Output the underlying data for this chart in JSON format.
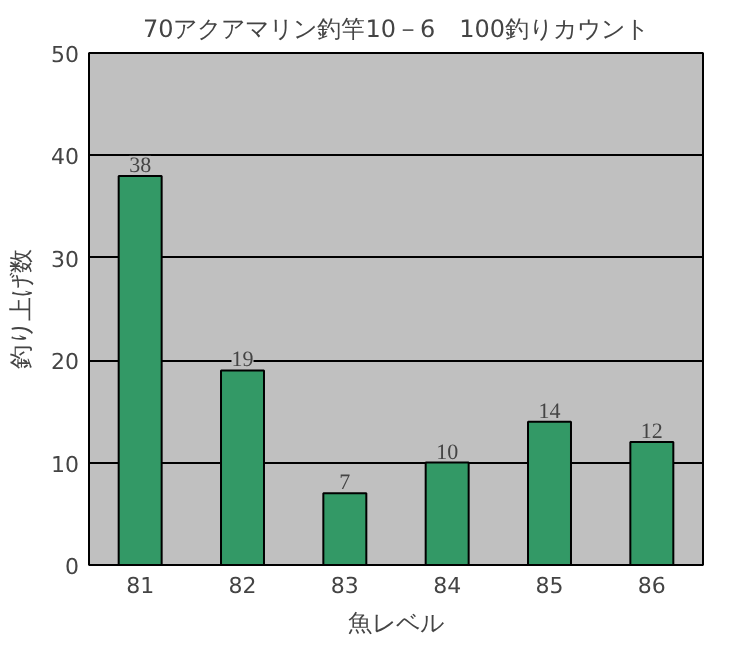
{
  "chart_data": {
    "type": "bar",
    "title": "70アクアマリン釣竿10－6　100釣りカウント",
    "xlabel": "魚レベル",
    "ylabel": "釣り上げ数",
    "categories": [
      "81",
      "82",
      "83",
      "84",
      "85",
      "86"
    ],
    "values": [
      38,
      19,
      7,
      10,
      14,
      12
    ],
    "color": "#339966",
    "ylim": [
      0,
      50
    ],
    "yticks": [
      0,
      10,
      20,
      30,
      40,
      50
    ],
    "grid": "y",
    "data_labels": true
  }
}
